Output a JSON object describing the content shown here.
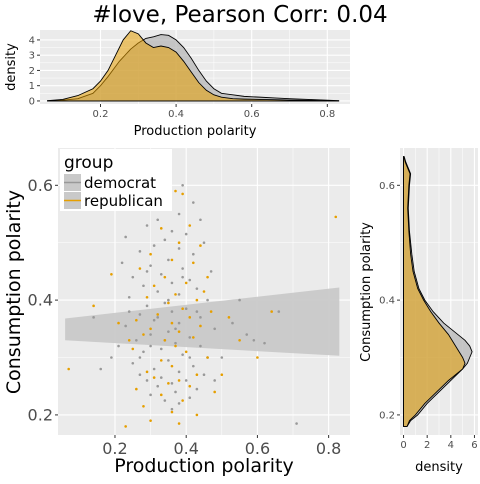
{
  "chart_data": {
    "type": "scatter",
    "title": "#love, Pearson Corr: 0.04",
    "colors": {
      "democrat": "#999999",
      "republican": "#e69f00",
      "band": "#c9c9c9",
      "panel": "#ebebeb"
    },
    "legend": {
      "title": "group",
      "placement": "top-left inside",
      "entries": [
        "democrat",
        "republican"
      ]
    },
    "main": {
      "xlabel": "Production polarity",
      "ylabel": "Consumption polarity",
      "xlim": [
        0.04,
        0.86
      ],
      "ylim": [
        0.165,
        0.665
      ],
      "xticks": [
        0.2,
        0.4,
        0.6,
        0.8
      ],
      "yticks": [
        0.2,
        0.4,
        0.6
      ],
      "xtick_labels": [
        "0.2",
        "0.4",
        "0.6",
        "0.8"
      ],
      "ytick_labels": [
        "0.2",
        "0.4",
        "0.6"
      ],
      "grid": true,
      "regression_band": {
        "x": [
          0.06,
          0.83
        ],
        "upper": [
          0.368,
          0.422
        ],
        "lower": [
          0.33,
          0.303
        ]
      },
      "series": [
        {
          "name": "democrat",
          "points": [
            [
              0.35,
              0.62
            ],
            [
              0.39,
              0.6
            ],
            [
              0.33,
              0.58
            ],
            [
              0.42,
              0.57
            ],
            [
              0.26,
              0.56
            ],
            [
              0.38,
              0.55
            ],
            [
              0.32,
              0.54
            ],
            [
              0.44,
              0.54
            ],
            [
              0.29,
              0.53
            ],
            [
              0.36,
              0.52
            ],
            [
              0.4,
              0.515
            ],
            [
              0.23,
              0.51
            ],
            [
              0.34,
              0.505
            ],
            [
              0.45,
              0.5
            ],
            [
              0.31,
              0.495
            ],
            [
              0.38,
              0.49
            ],
            [
              0.27,
              0.485
            ],
            [
              0.42,
              0.48
            ],
            [
              0.35,
              0.47
            ],
            [
              0.22,
              0.465
            ],
            [
              0.3,
              0.46
            ],
            [
              0.39,
              0.455
            ],
            [
              0.47,
              0.45
            ],
            [
              0.33,
              0.445
            ],
            [
              0.25,
              0.44
            ],
            [
              0.41,
              0.435
            ],
            [
              0.36,
              0.43
            ],
            [
              0.28,
              0.425
            ],
            [
              0.43,
              0.42
            ],
            [
              0.32,
              0.415
            ],
            [
              0.38,
              0.41
            ],
            [
              0.24,
              0.405
            ],
            [
              0.46,
              0.4
            ],
            [
              0.34,
              0.395
            ],
            [
              0.29,
              0.39
            ],
            [
              0.4,
              0.385
            ],
            [
              0.36,
              0.38
            ],
            [
              0.27,
              0.375
            ],
            [
              0.44,
              0.37
            ],
            [
              0.31,
              0.365
            ],
            [
              0.38,
              0.36
            ],
            [
              0.23,
              0.355
            ],
            [
              0.48,
              0.35
            ],
            [
              0.35,
              0.345
            ],
            [
              0.3,
              0.34
            ],
            [
              0.41,
              0.335
            ],
            [
              0.26,
              0.33
            ],
            [
              0.37,
              0.325
            ],
            [
              0.44,
              0.32
            ],
            [
              0.33,
              0.315
            ],
            [
              0.28,
              0.31
            ],
            [
              0.39,
              0.305
            ],
            [
              0.46,
              0.3
            ],
            [
              0.35,
              0.295
            ],
            [
              0.25,
              0.29
            ],
            [
              0.42,
              0.285
            ],
            [
              0.31,
              0.28
            ],
            [
              0.38,
              0.275
            ],
            [
              0.27,
              0.27
            ],
            [
              0.45,
              0.27
            ],
            [
              0.33,
              0.265
            ],
            [
              0.29,
              0.26
            ],
            [
              0.4,
              0.26
            ],
            [
              0.36,
              0.255
            ],
            [
              0.32,
              0.25
            ],
            [
              0.43,
              0.245
            ],
            [
              0.37,
              0.24
            ],
            [
              0.3,
              0.235
            ],
            [
              0.41,
              0.23
            ],
            [
              0.34,
              0.225
            ],
            [
              0.38,
              0.22
            ],
            [
              0.36,
              0.21
            ],
            [
              0.57,
              0.34
            ],
            [
              0.59,
              0.33
            ],
            [
              0.62,
              0.325
            ],
            [
              0.66,
              0.38
            ],
            [
              0.71,
              0.185
            ],
            [
              0.14,
              0.37
            ],
            [
              0.19,
              0.3
            ],
            [
              0.53,
              0.36
            ],
            [
              0.5,
              0.3
            ],
            [
              0.48,
              0.26
            ],
            [
              0.21,
              0.32
            ],
            [
              0.16,
              0.28
            ],
            [
              0.55,
              0.4
            ],
            [
              0.24,
              0.38
            ],
            [
              0.27,
              0.3
            ],
            [
              0.29,
              0.45
            ],
            [
              0.32,
              0.37
            ],
            [
              0.35,
              0.4
            ],
            [
              0.37,
              0.35
            ],
            [
              0.39,
              0.44
            ],
            [
              0.41,
              0.3
            ],
            [
              0.43,
              0.38
            ],
            [
              0.3,
              0.32
            ],
            [
              0.34,
              0.33
            ]
          ]
        },
        {
          "name": "republican",
          "points": [
            [
              0.39,
              0.585
            ],
            [
              0.37,
              0.59
            ],
            [
              0.35,
              0.56
            ],
            [
              0.41,
              0.53
            ],
            [
              0.33,
              0.525
            ],
            [
              0.38,
              0.5
            ],
            [
              0.44,
              0.495
            ],
            [
              0.3,
              0.48
            ],
            [
              0.36,
              0.47
            ],
            [
              0.42,
              0.465
            ],
            [
              0.27,
              0.455
            ],
            [
              0.19,
              0.445
            ],
            [
              0.34,
              0.44
            ],
            [
              0.4,
              0.43
            ],
            [
              0.31,
              0.425
            ],
            [
              0.45,
              0.415
            ],
            [
              0.37,
              0.41
            ],
            [
              0.29,
              0.405
            ],
            [
              0.43,
              0.4
            ],
            [
              0.35,
              0.395
            ],
            [
              0.14,
              0.39
            ],
            [
              0.39,
              0.385
            ],
            [
              0.47,
              0.38
            ],
            [
              0.32,
              0.375
            ],
            [
              0.41,
              0.37
            ],
            [
              0.26,
              0.365
            ],
            [
              0.36,
              0.36
            ],
            [
              0.44,
              0.355
            ],
            [
              0.3,
              0.35
            ],
            [
              0.38,
              0.345
            ],
            [
              0.28,
              0.34
            ],
            [
              0.42,
              0.335
            ],
            [
              0.34,
              0.33
            ],
            [
              0.37,
              0.32
            ],
            [
              0.25,
              0.315
            ],
            [
              0.4,
              0.31
            ],
            [
              0.46,
              0.3
            ],
            [
              0.33,
              0.295
            ],
            [
              0.36,
              0.285
            ],
            [
              0.29,
              0.275
            ],
            [
              0.43,
              0.27
            ],
            [
              0.31,
              0.265
            ],
            [
              0.38,
              0.26
            ],
            [
              0.35,
              0.255
            ],
            [
              0.41,
              0.25
            ],
            [
              0.26,
              0.245
            ],
            [
              0.33,
              0.235
            ],
            [
              0.39,
              0.225
            ],
            [
              0.28,
              0.215
            ],
            [
              0.36,
              0.205
            ],
            [
              0.43,
              0.2
            ],
            [
              0.3,
              0.19
            ],
            [
              0.38,
              0.185
            ],
            [
              0.23,
              0.18
            ],
            [
              0.82,
              0.545
            ],
            [
              0.07,
              0.28
            ],
            [
              0.6,
              0.3
            ],
            [
              0.55,
              0.33
            ],
            [
              0.5,
              0.27
            ],
            [
              0.52,
              0.37
            ],
            [
              0.64,
              0.38
            ],
            [
              0.21,
              0.36
            ],
            [
              0.24,
              0.33
            ],
            [
              0.46,
              0.44
            ],
            [
              0.48,
              0.24
            ]
          ]
        }
      ]
    },
    "top_density": {
      "ylabel": "density",
      "xlabel": "Production polarity",
      "xlim": [
        0.04,
        0.86
      ],
      "ylim": [
        -0.2,
        4.65
      ],
      "xticks": [
        0.2,
        0.4,
        0.6,
        0.8
      ],
      "yticks": [
        0,
        1,
        2,
        3,
        4
      ],
      "xtick_labels": [
        "0.2",
        "0.4",
        "0.6",
        "0.8"
      ],
      "ytick_labels": [
        "0",
        "1",
        "2",
        "3",
        "4"
      ],
      "series": [
        {
          "name": "democrat",
          "x": [
            0.06,
            0.1,
            0.14,
            0.18,
            0.2,
            0.22,
            0.25,
            0.28,
            0.3,
            0.32,
            0.34,
            0.36,
            0.38,
            0.4,
            0.42,
            0.44,
            0.46,
            0.48,
            0.5,
            0.52,
            0.55,
            0.58,
            0.62,
            0.66,
            0.7,
            0.75,
            0.8,
            0.83
          ],
          "y": [
            0.01,
            0.05,
            0.15,
            0.5,
            1.0,
            1.6,
            2.6,
            3.4,
            3.8,
            4.1,
            4.2,
            4.35,
            4.3,
            4.0,
            3.5,
            2.8,
            2.0,
            1.3,
            0.8,
            0.5,
            0.4,
            0.3,
            0.25,
            0.2,
            0.15,
            0.1,
            0.05,
            0.02
          ]
        },
        {
          "name": "republican",
          "x": [
            0.06,
            0.1,
            0.14,
            0.18,
            0.2,
            0.22,
            0.24,
            0.26,
            0.28,
            0.3,
            0.32,
            0.34,
            0.36,
            0.38,
            0.4,
            0.42,
            0.44,
            0.46,
            0.48,
            0.5,
            0.52,
            0.55,
            0.58,
            0.62,
            0.66,
            0.7,
            0.75,
            0.8,
            0.83
          ],
          "y": [
            0.02,
            0.1,
            0.35,
            0.8,
            1.3,
            2.0,
            3.0,
            4.0,
            4.6,
            4.4,
            3.8,
            3.5,
            3.6,
            3.5,
            3.2,
            2.6,
            1.9,
            1.2,
            0.7,
            0.4,
            0.25,
            0.15,
            0.12,
            0.1,
            0.08,
            0.06,
            0.04,
            0.02,
            0.01
          ]
        }
      ]
    },
    "right_density": {
      "xlabel": "density",
      "ylabel": "Consumption polarity",
      "xlim": [
        -0.3,
        6.3
      ],
      "ylim": [
        0.165,
        0.665
      ],
      "xticks": [
        0,
        2,
        4,
        6
      ],
      "yticks": [
        0.2,
        0.4,
        0.6
      ],
      "xtick_labels": [
        "0",
        "2",
        "4",
        "6"
      ],
      "ytick_labels": [
        "0.2",
        "0.4",
        "0.6"
      ],
      "series": [
        {
          "name": "democrat",
          "y": [
            0.18,
            0.19,
            0.2,
            0.22,
            0.24,
            0.26,
            0.27,
            0.28,
            0.29,
            0.3,
            0.31,
            0.32,
            0.33,
            0.34,
            0.35,
            0.36,
            0.38,
            0.4,
            0.42,
            0.45,
            0.48,
            0.52,
            0.56,
            0.6,
            0.62,
            0.63,
            0.64,
            0.65
          ],
          "x": [
            0.3,
            0.6,
            1.2,
            2.0,
            3.0,
            4.0,
            4.5,
            5.0,
            5.4,
            5.6,
            5.8,
            5.6,
            5.2,
            4.6,
            4.0,
            3.4,
            2.5,
            1.8,
            1.3,
            0.9,
            0.7,
            0.5,
            0.4,
            0.5,
            0.6,
            0.4,
            0.2,
            0.05
          ]
        },
        {
          "name": "republican",
          "y": [
            0.18,
            0.19,
            0.2,
            0.22,
            0.24,
            0.26,
            0.27,
            0.28,
            0.29,
            0.3,
            0.31,
            0.32,
            0.33,
            0.34,
            0.35,
            0.36,
            0.38,
            0.4,
            0.42,
            0.45,
            0.48,
            0.52,
            0.56,
            0.6,
            0.62,
            0.63,
            0.64,
            0.65
          ],
          "x": [
            0.3,
            0.5,
            1.0,
            1.8,
            2.8,
            3.8,
            4.4,
            5.0,
            5.2,
            5.0,
            4.7,
            4.4,
            4.1,
            3.8,
            3.4,
            3.0,
            2.3,
            1.7,
            1.2,
            0.8,
            0.6,
            0.45,
            0.35,
            0.45,
            0.55,
            0.35,
            0.15,
            0.03
          ]
        }
      ]
    }
  }
}
